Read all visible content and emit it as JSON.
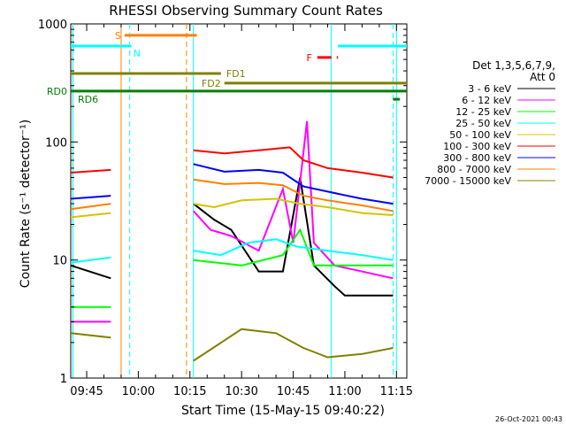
{
  "chart_data": {
    "type": "line",
    "title": "RHESSI Observing Summary Count Rates",
    "xlabel": "Start Time (15-May-15 09:40:22)",
    "ylabel": "Count Rate (s⁻¹ detector⁻¹)",
    "y_scale": "log",
    "xlim": [
      "09:40:22",
      "11:18:00"
    ],
    "ylim": [
      1,
      1000
    ],
    "x_ticks": [
      "09:45",
      "10:00",
      "10:15",
      "10:30",
      "10:45",
      "11:00",
      "11:15"
    ],
    "y_ticks": [
      "1",
      "10",
      "100",
      "1000"
    ],
    "timestamp": "26-Oct-2021 00:43",
    "legend_header": [
      "Det 1,3,5,6,7,9,",
      "Att 0"
    ],
    "legend_placement": "right",
    "series": [
      {
        "name": "3 - 6 keV",
        "color": "#000000",
        "points": [
          [
            "09:40:22",
            9
          ],
          [
            "09:52:00",
            7
          ],
          [
            "10:16:00",
            30
          ],
          [
            "10:22:00",
            22
          ],
          [
            "10:27:00",
            18
          ],
          [
            "10:35:00",
            8
          ],
          [
            "10:42:00",
            8
          ],
          [
            "10:47:00",
            50
          ],
          [
            "10:51:00",
            9
          ],
          [
            "10:57:00",
            6
          ],
          [
            "11:00:00",
            5
          ],
          [
            "11:14:00",
            5
          ]
        ]
      },
      {
        "name": "6 - 12 keV",
        "color": "#ff00ff",
        "points": [
          [
            "09:40:22",
            3
          ],
          [
            "09:52:00",
            3
          ],
          [
            "10:16:00",
            26
          ],
          [
            "10:21:00",
            18
          ],
          [
            "10:27:00",
            16
          ],
          [
            "10:35:00",
            12
          ],
          [
            "10:42:00",
            40
          ],
          [
            "10:45:00",
            14
          ],
          [
            "10:49:00",
            150
          ],
          [
            "10:51:00",
            14
          ],
          [
            "10:57:00",
            9
          ],
          [
            "11:14:00",
            7
          ]
        ]
      },
      {
        "name": "12 - 25 keV",
        "color": "#00ff00",
        "points": [
          [
            "09:40:22",
            4
          ],
          [
            "09:52:00",
            4
          ],
          [
            "10:16:00",
            10
          ],
          [
            "10:30:00",
            9
          ],
          [
            "10:42:00",
            11
          ],
          [
            "10:47:00",
            18
          ],
          [
            "10:51:00",
            9
          ],
          [
            "11:00:00",
            9
          ],
          [
            "11:14:00",
            9
          ]
        ]
      },
      {
        "name": "25 - 50 keV",
        "color": "#00ffff",
        "points": [
          [
            "09:40:22",
            9.5
          ],
          [
            "09:52:00",
            10.5
          ],
          [
            "10:16:00",
            12
          ],
          [
            "10:24:00",
            11
          ],
          [
            "10:32:00",
            14
          ],
          [
            "10:40:00",
            15
          ],
          [
            "10:46:00",
            13
          ],
          [
            "10:55:00",
            12
          ],
          [
            "11:05:00",
            11
          ],
          [
            "11:14:00",
            10
          ]
        ]
      },
      {
        "name": "50 - 100 keV",
        "color": "#d4c400",
        "points": [
          [
            "09:40:22",
            23
          ],
          [
            "09:52:00",
            25
          ],
          [
            "10:16:00",
            30
          ],
          [
            "10:22:00",
            28
          ],
          [
            "10:30:00",
            32
          ],
          [
            "10:40:00",
            33
          ],
          [
            "10:47:00",
            30
          ],
          [
            "10:55:00",
            28
          ],
          [
            "11:05:00",
            25
          ],
          [
            "11:14:00",
            24
          ]
        ]
      },
      {
        "name": "100 - 300 keV",
        "color": "#ff0000",
        "points": [
          [
            "09:40:22",
            55
          ],
          [
            "09:52:00",
            58
          ],
          [
            "10:16:00",
            85
          ],
          [
            "10:25:00",
            80
          ],
          [
            "10:35:00",
            85
          ],
          [
            "10:44:00",
            90
          ],
          [
            "10:48:00",
            70
          ],
          [
            "10:55:00",
            60
          ],
          [
            "11:05:00",
            55
          ],
          [
            "11:14:00",
            50
          ]
        ]
      },
      {
        "name": "300 - 800 keV",
        "color": "#0000ff",
        "points": [
          [
            "09:40:22",
            33
          ],
          [
            "09:52:00",
            35
          ],
          [
            "10:16:00",
            65
          ],
          [
            "10:25:00",
            56
          ],
          [
            "10:35:00",
            58
          ],
          [
            "10:42:00",
            55
          ],
          [
            "10:48:00",
            42
          ],
          [
            "10:55:00",
            38
          ],
          [
            "11:05:00",
            33
          ],
          [
            "11:14:00",
            30
          ]
        ]
      },
      {
        "name": "800 - 7000 keV",
        "color": "#ff8000",
        "points": [
          [
            "09:40:22",
            27
          ],
          [
            "09:52:00",
            30
          ],
          [
            "10:16:00",
            48
          ],
          [
            "10:25:00",
            44
          ],
          [
            "10:35:00",
            45
          ],
          [
            "10:42:00",
            43
          ],
          [
            "10:48:00",
            35
          ],
          [
            "10:55:00",
            32
          ],
          [
            "11:05:00",
            29
          ],
          [
            "11:14:00",
            26
          ]
        ]
      },
      {
        "name": "7000 - 15000 keV",
        "color": "#808000",
        "points": [
          [
            "09:40:22",
            2.4
          ],
          [
            "09:52:00",
            2.2
          ],
          [
            "10:16:00",
            1.4
          ],
          [
            "10:30:00",
            2.6
          ],
          [
            "10:40:00",
            2.4
          ],
          [
            "10:48:00",
            1.8
          ],
          [
            "10:55:00",
            1.5
          ],
          [
            "11:05:00",
            1.6
          ],
          [
            "11:14:00",
            1.8
          ]
        ]
      }
    ],
    "status_bars": [
      {
        "label": "S",
        "color": "#ff8000",
        "start": "09:56:00",
        "end": "10:17:00",
        "y_value": 800
      },
      {
        "label": "N",
        "color": "#00ffff",
        "start": "09:40:22",
        "end": "09:58:00",
        "y_value": 650
      },
      {
        "label": "N",
        "color": "#00ffff",
        "start": "10:58:00",
        "end": "11:18:00",
        "y_value": 650
      },
      {
        "label": "F",
        "color": "#ff0000",
        "start": "10:52:00",
        "end": "10:58:00",
        "y_value": 520,
        "dashed": true
      },
      {
        "label": "FD1",
        "color": "#808000",
        "start": "09:40:22",
        "end": "10:24:00",
        "y_value": 380
      },
      {
        "label": "FD2",
        "color": "#808000",
        "start": "10:25:00",
        "end": "11:18:00",
        "y_value": 315
      },
      {
        "label": "RD0",
        "color": "#008000",
        "start": "09:40:22",
        "end": "11:18:00",
        "y_value": 270
      },
      {
        "label": "RD6",
        "color": "#008000",
        "start": "11:14:00",
        "end": "11:16:00",
        "y_value": 230
      }
    ],
    "vertical_markers": [
      {
        "time": "09:41:00",
        "color": "#00ffff",
        "style": "solid"
      },
      {
        "time": "09:55:00",
        "color": "#ff8000",
        "style": "solid"
      },
      {
        "time": "09:57:30",
        "color": "#00ffff",
        "style": "dashed"
      },
      {
        "time": "10:14:00",
        "color": "#ff8000",
        "style": "dashed"
      },
      {
        "time": "10:16:00",
        "color": "#00ffff",
        "style": "solid"
      },
      {
        "time": "10:56:00",
        "color": "#00ffff",
        "style": "solid"
      },
      {
        "time": "11:14:00",
        "color": "#00ffff",
        "style": "dashed"
      },
      {
        "time": "11:15:00",
        "color": "#00ffff",
        "style": "solid"
      }
    ]
  }
}
